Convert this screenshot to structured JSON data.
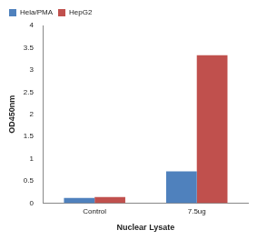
{
  "chart_data": {
    "type": "bar",
    "categories": [
      "Control",
      "7.5ug"
    ],
    "series": [
      {
        "name": "Hela/PMA",
        "color": "#4f81bd",
        "values": [
          0.12,
          0.72
        ]
      },
      {
        "name": "HepG2",
        "color": "#c0504d",
        "values": [
          0.14,
          3.33
        ]
      }
    ],
    "x_label": "Nuclear Lysate",
    "y_label": "OD450nm",
    "ylim": [
      0,
      4
    ],
    "yticks": [
      0,
      0.5,
      1,
      1.5,
      2,
      2.5,
      3,
      3.5,
      4
    ],
    "grid": false,
    "legend": "upper left"
  }
}
